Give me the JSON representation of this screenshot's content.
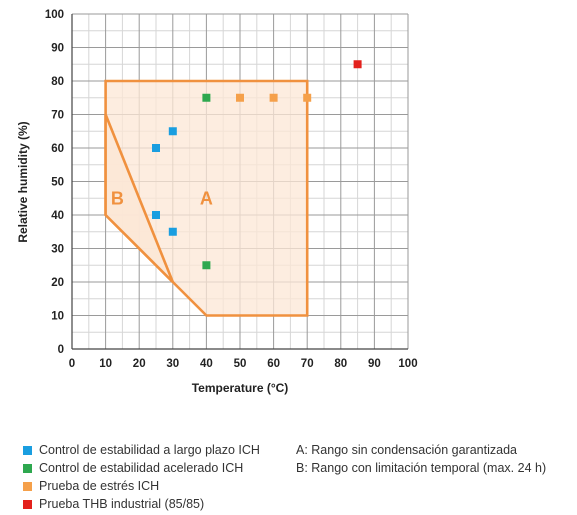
{
  "chart_data": {
    "type": "scatter",
    "xlabel": "Temperature (°C)",
    "ylabel": "Relative humidity (%)",
    "xlim": [
      0,
      100
    ],
    "ylim": [
      0,
      100
    ],
    "x_ticks": [
      0,
      10,
      20,
      30,
      40,
      50,
      60,
      70,
      80,
      90,
      100
    ],
    "y_ticks": [
      0,
      10,
      20,
      30,
      40,
      50,
      60,
      70,
      80,
      90,
      100
    ],
    "grid": true,
    "series": [
      {
        "name": "Control de estabilidad a largo plazo ICH",
        "color": "#1a9ee0",
        "points": [
          [
            25,
            60
          ],
          [
            30,
            65
          ],
          [
            25,
            40
          ],
          [
            30,
            35
          ]
        ]
      },
      {
        "name": "Control de estabilidad acelerado ICH",
        "color": "#2ea84f",
        "points": [
          [
            40,
            75
          ],
          [
            40,
            25
          ]
        ]
      },
      {
        "name": "Prueba de estrés ICH",
        "color": "#f5a04a",
        "points": [
          [
            50,
            75
          ],
          [
            60,
            75
          ],
          [
            70,
            75
          ]
        ]
      },
      {
        "name": "Prueba THB industrial (85/85)",
        "color": "#e3211c",
        "points": [
          [
            85,
            85
          ]
        ]
      }
    ],
    "regions": [
      {
        "label": "A",
        "description": "A: Rango sin condensación garantizada",
        "polygon": [
          [
            10,
            80
          ],
          [
            70,
            80
          ],
          [
            70,
            10
          ],
          [
            40,
            10
          ],
          [
            30,
            20
          ],
          [
            10,
            40
          ]
        ],
        "label_at": [
          40,
          45
        ]
      },
      {
        "label": "B",
        "description": "B: Rango con limitación temporal (max. 24 h)",
        "polygon": [
          [
            10,
            70
          ],
          [
            30,
            20
          ],
          [
            10,
            40
          ]
        ],
        "label_at": [
          13.5,
          45
        ]
      }
    ],
    "region_color": "#f0913f",
    "region_fill": "#fce7d6"
  }
}
